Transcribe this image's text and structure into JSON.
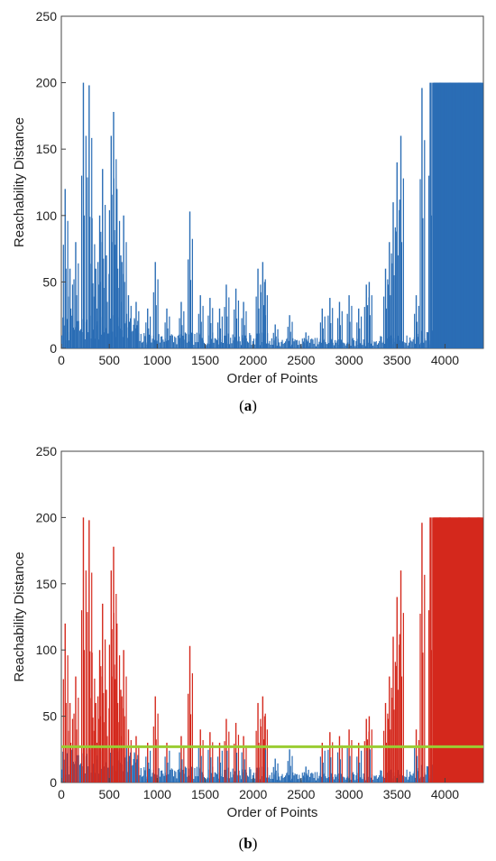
{
  "chart_data": [
    {
      "type": "bar",
      "panel_caption": "a",
      "xlabel": "Order of Points",
      "ylabel": "Reachability Distance",
      "xlim": [
        0,
        4400
      ],
      "ylim": [
        0,
        250
      ],
      "xticks": [
        0,
        500,
        1000,
        1500,
        2000,
        2500,
        3000,
        3500,
        4000
      ],
      "yticks": [
        0,
        50,
        100,
        150,
        200,
        250
      ],
      "bar_color": "#2a6db5",
      "peaks": [
        {
          "x": 40,
          "y": 120
        },
        {
          "x": 90,
          "y": 60
        },
        {
          "x": 150,
          "y": 80
        },
        {
          "x": 230,
          "y": 200
        },
        {
          "x": 290,
          "y": 198
        },
        {
          "x": 320,
          "y": 98
        },
        {
          "x": 360,
          "y": 60
        },
        {
          "x": 400,
          "y": 100
        },
        {
          "x": 430,
          "y": 135
        },
        {
          "x": 470,
          "y": 70
        },
        {
          "x": 520,
          "y": 160
        },
        {
          "x": 545,
          "y": 178
        },
        {
          "x": 580,
          "y": 120
        },
        {
          "x": 620,
          "y": 70
        },
        {
          "x": 650,
          "y": 100
        },
        {
          "x": 700,
          "y": 40
        },
        {
          "x": 780,
          "y": 35
        },
        {
          "x": 900,
          "y": 30
        },
        {
          "x": 980,
          "y": 65
        },
        {
          "x": 1100,
          "y": 30
        },
        {
          "x": 1250,
          "y": 35
        },
        {
          "x": 1340,
          "y": 103
        },
        {
          "x": 1450,
          "y": 40
        },
        {
          "x": 1550,
          "y": 38
        },
        {
          "x": 1650,
          "y": 30
        },
        {
          "x": 1720,
          "y": 48
        },
        {
          "x": 1820,
          "y": 45
        },
        {
          "x": 1900,
          "y": 35
        },
        {
          "x": 2050,
          "y": 60
        },
        {
          "x": 2100,
          "y": 65
        },
        {
          "x": 2120,
          "y": 50
        },
        {
          "x": 2230,
          "y": 18
        },
        {
          "x": 2380,
          "y": 25
        },
        {
          "x": 2550,
          "y": 12
        },
        {
          "x": 2720,
          "y": 30
        },
        {
          "x": 2800,
          "y": 38
        },
        {
          "x": 2900,
          "y": 35
        },
        {
          "x": 3000,
          "y": 40
        },
        {
          "x": 3100,
          "y": 30
        },
        {
          "x": 3180,
          "y": 48
        },
        {
          "x": 3210,
          "y": 50
        },
        {
          "x": 3380,
          "y": 60
        },
        {
          "x": 3420,
          "y": 80
        },
        {
          "x": 3460,
          "y": 110
        },
        {
          "x": 3500,
          "y": 140
        },
        {
          "x": 3540,
          "y": 160
        },
        {
          "x": 3700,
          "y": 40
        },
        {
          "x": 3760,
          "y": 196
        },
        {
          "x": 3850,
          "y": 200
        },
        {
          "x": 3950,
          "y": 200
        },
        {
          "x": 4050,
          "y": 200
        },
        {
          "x": 4150,
          "y": 200
        },
        {
          "x": 4250,
          "y": 200
        },
        {
          "x": 4350,
          "y": 200
        }
      ]
    },
    {
      "type": "bar",
      "panel_caption": "b",
      "xlabel": "Order of Points",
      "ylabel": "Reachability Distance",
      "xlim": [
        0,
        4400
      ],
      "ylim": [
        0,
        250
      ],
      "xticks": [
        0,
        500,
        1000,
        1500,
        2000,
        2500,
        3000,
        3500,
        4000
      ],
      "yticks": [
        0,
        50,
        100,
        150,
        200,
        250
      ],
      "bar_color": "#2a6db5",
      "highlight_color": "#d4281c",
      "threshold": 27,
      "threshold_color": "#9acd32",
      "peaks": [
        {
          "x": 40,
          "y": 120
        },
        {
          "x": 90,
          "y": 60
        },
        {
          "x": 150,
          "y": 80
        },
        {
          "x": 230,
          "y": 200
        },
        {
          "x": 290,
          "y": 198
        },
        {
          "x": 320,
          "y": 98
        },
        {
          "x": 360,
          "y": 60
        },
        {
          "x": 400,
          "y": 100
        },
        {
          "x": 430,
          "y": 135
        },
        {
          "x": 470,
          "y": 70
        },
        {
          "x": 520,
          "y": 160
        },
        {
          "x": 545,
          "y": 178
        },
        {
          "x": 580,
          "y": 120
        },
        {
          "x": 620,
          "y": 70
        },
        {
          "x": 650,
          "y": 100
        },
        {
          "x": 700,
          "y": 40
        },
        {
          "x": 780,
          "y": 35
        },
        {
          "x": 900,
          "y": 30
        },
        {
          "x": 980,
          "y": 65
        },
        {
          "x": 1100,
          "y": 30
        },
        {
          "x": 1250,
          "y": 35
        },
        {
          "x": 1340,
          "y": 103
        },
        {
          "x": 1450,
          "y": 40
        },
        {
          "x": 1550,
          "y": 38
        },
        {
          "x": 1650,
          "y": 30
        },
        {
          "x": 1720,
          "y": 48
        },
        {
          "x": 1820,
          "y": 45
        },
        {
          "x": 1900,
          "y": 35
        },
        {
          "x": 2050,
          "y": 60
        },
        {
          "x": 2100,
          "y": 65
        },
        {
          "x": 2120,
          "y": 50
        },
        {
          "x": 2230,
          "y": 18
        },
        {
          "x": 2380,
          "y": 25
        },
        {
          "x": 2550,
          "y": 12
        },
        {
          "x": 2720,
          "y": 30
        },
        {
          "x": 2800,
          "y": 38
        },
        {
          "x": 2900,
          "y": 35
        },
        {
          "x": 3000,
          "y": 40
        },
        {
          "x": 3100,
          "y": 30
        },
        {
          "x": 3180,
          "y": 48
        },
        {
          "x": 3210,
          "y": 50
        },
        {
          "x": 3380,
          "y": 60
        },
        {
          "x": 3420,
          "y": 80
        },
        {
          "x": 3460,
          "y": 110
        },
        {
          "x": 3500,
          "y": 140
        },
        {
          "x": 3540,
          "y": 160
        },
        {
          "x": 3700,
          "y": 40
        },
        {
          "x": 3760,
          "y": 196
        },
        {
          "x": 3850,
          "y": 200
        },
        {
          "x": 3950,
          "y": 200
        },
        {
          "x": 4050,
          "y": 200
        },
        {
          "x": 4150,
          "y": 200
        },
        {
          "x": 4250,
          "y": 200
        },
        {
          "x": 4350,
          "y": 200
        }
      ]
    }
  ]
}
